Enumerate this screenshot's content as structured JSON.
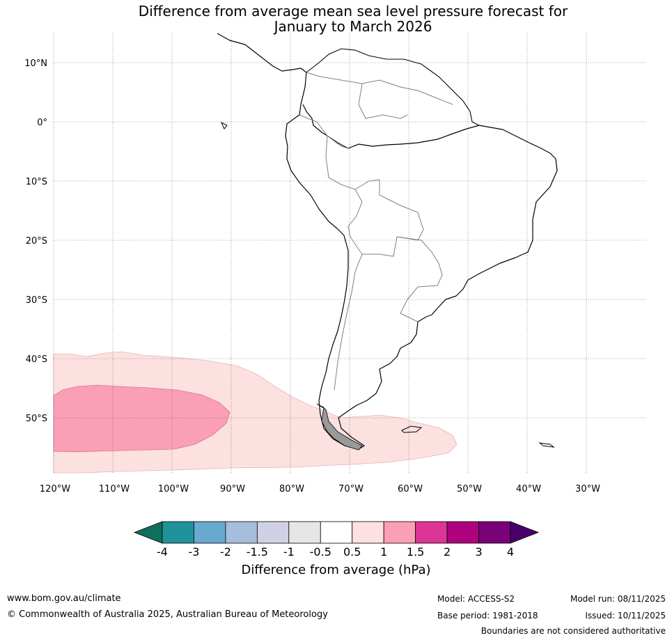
{
  "title_line1": "Difference from average mean sea level pressure forecast for",
  "title_line2": "January to March 2026",
  "lat_labels": [
    "10°N",
    "0°",
    "10°S",
    "20°S",
    "30°S",
    "40°S",
    "50°S"
  ],
  "lon_labels": [
    "120°W",
    "110°W",
    "100°W",
    "90°W",
    "80°W",
    "70°W",
    "60°W",
    "50°W",
    "40°W",
    "30°W"
  ],
  "colorbar": {
    "ticks": [
      "-4",
      "-3",
      "-2",
      "-1.5",
      "-1",
      "-0.5",
      "0.5",
      "1",
      "1.5",
      "2",
      "3",
      "4"
    ],
    "colors": [
      "#0f6e5e",
      "#1f929b",
      "#68a9cf",
      "#a6bddb",
      "#d0d1e6",
      "#e6e6e6",
      "#ffffff",
      "#fde0e0",
      "#fa9fb5",
      "#dd3497",
      "#ae017e",
      "#7a0177",
      "#49006a"
    ],
    "label": "Difference from average (hPa)"
  },
  "footer": {
    "website": "www.bom.gov.au/climate",
    "copyright": "© Commonwealth of Australia 2025, Australian Bureau of Meteorology",
    "model": "Model: ACCESS-S2",
    "base_period": "Base period: 1981-2018",
    "model_run": "Model run: 08/11/2025",
    "issued": "Issued: 10/11/2025",
    "disclaimer": "Boundaries are not considered authoritative"
  }
}
